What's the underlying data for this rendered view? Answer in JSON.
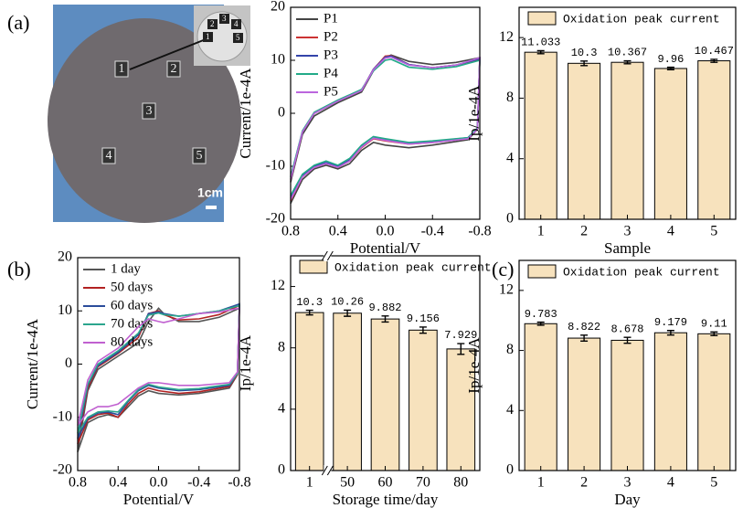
{
  "panel_labels": [
    "(a)",
    "(b)",
    "(c)"
  ],
  "photo": {
    "labels": [
      "1",
      "2",
      "3",
      "4",
      "5"
    ],
    "inset_labels": [
      "1",
      "2",
      "3",
      "4",
      "5"
    ],
    "scale_bar": "1cm"
  },
  "chart_data": [
    {
      "type": "line",
      "x_label": "Potential/V",
      "y_label": "Current/1e-4A",
      "x": [
        0.8,
        0.7,
        0.6,
        0.4,
        0.2,
        0.1,
        0.0,
        -0.05,
        -0.2,
        -0.4,
        -0.6,
        -0.8,
        -0.78,
        -0.7,
        -0.4,
        -0.2,
        0.0,
        0.1,
        0.2,
        0.3,
        0.4,
        0.5,
        0.6,
        0.7,
        0.8
      ],
      "xlim": [
        0.8,
        -0.8
      ],
      "xticks": [
        0.8,
        0.4,
        {
          "value": 0,
          "label": "0.0"
        },
        -0.4,
        -0.8
      ],
      "ylim": [
        -20,
        20
      ],
      "yticks": [
        -20,
        -10,
        0,
        10,
        20
      ],
      "legend": "top-left",
      "series": [
        {
          "name": "P1",
          "color": "#444444",
          "values": [
            -13,
            -4,
            -0.5,
            2,
            4,
            8,
            10.5,
            11,
            9.8,
            9.2,
            9.6,
            10.5,
            -3,
            -5,
            -6,
            -6.5,
            -6,
            -5.5,
            -7,
            -9.5,
            -10.5,
            -9.8,
            -10.5,
            -12.5,
            -17
          ]
        },
        {
          "name": "P2",
          "color": "#cc3333",
          "values": [
            -12.5,
            -3.5,
            0,
            2.3,
            4.3,
            8.3,
            10.8,
            10.9,
            9.2,
            8.6,
            9.1,
            10.2,
            -3,
            -4.8,
            -5.5,
            -5.8,
            -5.2,
            -4.8,
            -6.5,
            -9,
            -10.2,
            -9.5,
            -10.2,
            -12,
            -16.5
          ]
        },
        {
          "name": "P3",
          "color": "#3344aa",
          "values": [
            -12,
            -3.5,
            0,
            2.3,
            4.3,
            8.3,
            10.6,
            10.8,
            9.2,
            8.6,
            9.1,
            10.3,
            -2.8,
            -4.6,
            -5.3,
            -5.6,
            -5,
            -4.6,
            -6.2,
            -8.8,
            -10,
            -9.3,
            -10,
            -11.8,
            -16
          ]
        },
        {
          "name": "P4",
          "color": "#22aa88",
          "values": [
            -12,
            -3.3,
            0.2,
            2.5,
            4.5,
            8,
            10,
            10.2,
            8.7,
            8.3,
            8.8,
            10,
            -2.8,
            -4.6,
            -5.2,
            -5.5,
            -4.8,
            -4.4,
            -6,
            -8.5,
            -9.8,
            -9,
            -9.8,
            -11.5,
            -15.5
          ]
        },
        {
          "name": "P5",
          "color": "#bb66dd",
          "values": [
            -12.5,
            -3.5,
            0,
            2.3,
            4.3,
            8.2,
            10.4,
            10.6,
            9.1,
            8.6,
            9.1,
            10.5,
            -3,
            -4.8,
            -5.5,
            -5.8,
            -5.1,
            -4.7,
            -6.4,
            -9,
            -10.2,
            -9.5,
            -10.2,
            -12,
            -16.3
          ]
        }
      ]
    },
    {
      "type": "bar",
      "x_label": "Sample",
      "y_label": "Ip/1e-4A",
      "legend_text": "Oxidation peak current",
      "color": "#f7e2bd",
      "categories": [
        "1",
        "2",
        "3",
        "4",
        "5"
      ],
      "values": [
        11.033,
        10.3,
        10.367,
        9.96,
        10.467
      ],
      "errors": [
        0.1,
        0.15,
        0.1,
        0.08,
        0.1
      ],
      "ylim": [
        0,
        14
      ],
      "yticks": [
        0,
        4,
        8,
        12
      ],
      "axis_break": false
    },
    {
      "type": "line",
      "x_label": "Potential/V",
      "y_label": "Current/1e-4A",
      "x": [
        0.8,
        0.7,
        0.6,
        0.4,
        0.2,
        0.1,
        0.0,
        -0.05,
        -0.2,
        -0.4,
        -0.6,
        -0.8,
        -0.78,
        -0.7,
        -0.4,
        -0.2,
        0.0,
        0.1,
        0.2,
        0.3,
        0.4,
        0.5,
        0.6,
        0.7,
        0.8
      ],
      "xlim": [
        0.8,
        -0.8
      ],
      "xticks": [
        0.8,
        0.4,
        {
          "value": 0,
          "label": "0.0"
        },
        -0.4,
        -0.8
      ],
      "ylim": [
        -20,
        20
      ],
      "yticks": [
        -20,
        -10,
        0,
        10,
        20
      ],
      "legend": "top-left",
      "series": [
        {
          "name": "1 day",
          "color": "#555555",
          "values": [
            -16.5,
            -5,
            -1,
            1.5,
            4,
            8,
            10.5,
            9.5,
            8,
            8,
            8.8,
            10.5,
            -2,
            -4.5,
            -5.5,
            -5.8,
            -5.5,
            -5,
            -6,
            -8,
            -10,
            -9.5,
            -10,
            -11,
            -16.5
          ]
        },
        {
          "name": "50 days",
          "color": "#b22222",
          "values": [
            -15,
            -4.5,
            -0.5,
            2,
            5,
            9.5,
            10,
            9.3,
            8.3,
            8.5,
            9.3,
            11,
            -2,
            -4.2,
            -5.2,
            -5.5,
            -5,
            -4.5,
            -5.5,
            -7.5,
            -10,
            -9.2,
            -9.5,
            -10.5,
            -15
          ]
        },
        {
          "name": "60 days",
          "color": "#2b4c9b",
          "values": [
            -14,
            -4,
            -0.3,
            2.2,
            5.5,
            9.5,
            9.8,
            9.5,
            9,
            9.5,
            10,
            11.3,
            -1.8,
            -4,
            -4.8,
            -5,
            -4.5,
            -4,
            -5,
            -7,
            -9.5,
            -9,
            -9.2,
            -10.2,
            -14
          ]
        },
        {
          "name": "70 days",
          "color": "#2ca58d",
          "values": [
            -13,
            -3.8,
            0,
            2.5,
            5.8,
            9.2,
            9.6,
            9.3,
            9,
            9.5,
            10,
            11,
            -1.8,
            -3.8,
            -4.6,
            -4.8,
            -4.3,
            -3.8,
            -4.8,
            -6.8,
            -9,
            -8.8,
            -9,
            -10,
            -13
          ]
        },
        {
          "name": "80 days",
          "color": "#c060d0",
          "values": [
            -11.5,
            -3,
            0.5,
            3,
            7,
            8.5,
            8,
            7.8,
            8.5,
            9.5,
            9.8,
            10.5,
            -1.5,
            -3.5,
            -4,
            -4,
            -3.5,
            -3.5,
            -4.5,
            -6,
            -7.5,
            -8,
            -8,
            -9,
            -11.5
          ]
        }
      ]
    },
    {
      "type": "bar",
      "x_label": "Storage time/day",
      "y_label": "Ip/1e-4A",
      "legend_text": "Oxidation peak current",
      "color": "#f7e2bd",
      "categories": [
        "1",
        "50",
        "60",
        "70",
        "80"
      ],
      "values": [
        10.3,
        10.26,
        9.882,
        9.156,
        7.929
      ],
      "errors": [
        0.15,
        0.2,
        0.2,
        0.2,
        0.35
      ],
      "ylim": [
        0,
        14
      ],
      "yticks": [
        0,
        4,
        8,
        12
      ],
      "axis_break": true
    },
    {
      "type": "bar",
      "x_label": "Day",
      "y_label": "Ip/1e-4A",
      "legend_text": "Oxidation peak current",
      "color": "#f7e2bd",
      "categories": [
        "1",
        "2",
        "3",
        "4",
        "5"
      ],
      "values": [
        9.783,
        8.822,
        8.678,
        9.179,
        9.11
      ],
      "errors": [
        0.1,
        0.2,
        0.2,
        0.15,
        0.12
      ],
      "ylim": [
        0,
        14
      ],
      "yticks": [
        0,
        4,
        8,
        12
      ],
      "axis_break": false
    }
  ]
}
